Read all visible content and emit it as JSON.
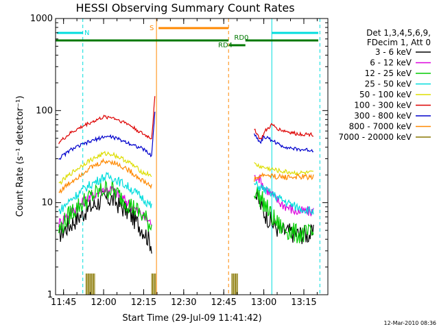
{
  "chart_data": {
    "type": "line",
    "title": "HESSI Observing Summary Count Rates",
    "xlabel": "Start Time (29-Jul-09 11:41:42)",
    "ylabel": "Count Rate (s⁻¹ detector⁻¹)",
    "yscale": "log",
    "ylim": [
      1,
      1000
    ],
    "yticks": [
      {
        "value": 1,
        "label": "1"
      },
      {
        "value": 10,
        "label": "10"
      },
      {
        "value": 100,
        "label": "100"
      },
      {
        "value": 1000,
        "label": "1000"
      }
    ],
    "xlim_minutes": [
      11.7,
      13.4
    ],
    "xticks": [
      {
        "value": 11.75,
        "label": "11:45"
      },
      {
        "value": 12.0,
        "label": "12:00"
      },
      {
        "value": 12.25,
        "label": "12:15"
      },
      {
        "value": 12.5,
        "label": "12:30"
      },
      {
        "value": 12.75,
        "label": "12:45"
      },
      {
        "value": 13.0,
        "label": "13:00"
      },
      {
        "value": 13.25,
        "label": "13:15"
      }
    ],
    "legend_placement": "right",
    "legend_header": [
      "Det 1,3,4,5,6,9,",
      "FDecim 1, Att 0"
    ],
    "series": [
      {
        "name": "3 - 6 keV",
        "color": "#000000",
        "day1": [
          [
            11.72,
            4.5
          ],
          [
            11.8,
            6
          ],
          [
            11.9,
            8.5
          ],
          [
            12.0,
            11
          ],
          [
            12.05,
            11
          ],
          [
            12.15,
            8
          ],
          [
            12.25,
            5
          ],
          [
            12.3,
            3.5
          ]
        ],
        "day2": [
          [
            12.95,
            12
          ],
          [
            13.0,
            8
          ],
          [
            13.05,
            6
          ],
          [
            13.1,
            5
          ],
          [
            13.2,
            4.6
          ],
          [
            13.31,
            4.5
          ]
        ]
      },
      {
        "name": "6 - 12 keV",
        "color": "#dd00dd",
        "day1": [
          [
            11.72,
            6
          ],
          [
            11.8,
            8
          ],
          [
            11.9,
            11
          ],
          [
            12.0,
            14
          ],
          [
            12.05,
            14
          ],
          [
            12.15,
            10
          ],
          [
            12.25,
            7
          ],
          [
            12.3,
            6
          ]
        ],
        "day2": [
          [
            12.94,
            18
          ],
          [
            12.96,
            20
          ],
          [
            13.0,
            15
          ],
          [
            13.1,
            10
          ],
          [
            13.2,
            8
          ],
          [
            13.31,
            8
          ]
        ]
      },
      {
        "name": "12 - 25 keV",
        "color": "#00cc00",
        "day1": [
          [
            11.72,
            5
          ],
          [
            11.8,
            8
          ],
          [
            11.9,
            11
          ],
          [
            12.0,
            14
          ],
          [
            12.05,
            14
          ],
          [
            12.15,
            10
          ],
          [
            12.25,
            7
          ],
          [
            12.3,
            5.5
          ]
        ],
        "day2": [
          [
            12.94,
            14
          ],
          [
            13.0,
            10
          ],
          [
            13.05,
            7
          ],
          [
            13.1,
            5.5
          ],
          [
            13.2,
            4.6
          ],
          [
            13.31,
            4.5
          ]
        ]
      },
      {
        "name": "25 - 50 keV",
        "color": "#00dddd",
        "day1": [
          [
            11.72,
            8
          ],
          [
            11.8,
            11
          ],
          [
            11.9,
            15
          ],
          [
            12.0,
            19
          ],
          [
            12.05,
            19
          ],
          [
            12.15,
            15
          ],
          [
            12.25,
            11
          ],
          [
            12.3,
            9
          ]
        ],
        "day2": [
          [
            12.94,
            16
          ],
          [
            13.0,
            14
          ],
          [
            13.1,
            11
          ],
          [
            13.2,
            9
          ],
          [
            13.31,
            8
          ]
        ]
      },
      {
        "name": "50 - 100 keV",
        "color": "#dddd00",
        "day1": [
          [
            11.72,
            16
          ],
          [
            11.8,
            21
          ],
          [
            11.9,
            28
          ],
          [
            12.0,
            34
          ],
          [
            12.05,
            34
          ],
          [
            12.15,
            28
          ],
          [
            12.25,
            21
          ],
          [
            12.3,
            20
          ]
        ],
        "day2": [
          [
            12.94,
            26
          ],
          [
            13.0,
            24
          ],
          [
            13.1,
            22
          ],
          [
            13.2,
            21
          ],
          [
            13.31,
            21
          ]
        ]
      },
      {
        "name": "100 - 300 keV",
        "color": "#dd0000",
        "day1": [
          [
            11.72,
            45
          ],
          [
            11.8,
            58
          ],
          [
            11.9,
            72
          ],
          [
            12.0,
            85
          ],
          [
            12.05,
            85
          ],
          [
            12.15,
            72
          ],
          [
            12.25,
            55
          ],
          [
            12.3,
            50
          ],
          [
            12.32,
            140
          ]
        ],
        "day2": [
          [
            12.94,
            65
          ],
          [
            12.96,
            55
          ],
          [
            12.98,
            48
          ],
          [
            13.01,
            60
          ],
          [
            13.05,
            70
          ],
          [
            13.1,
            62
          ],
          [
            13.2,
            56
          ],
          [
            13.31,
            55
          ]
        ]
      },
      {
        "name": "300 - 800 keV",
        "color": "#0000cc",
        "day1": [
          [
            11.72,
            30
          ],
          [
            11.8,
            38
          ],
          [
            11.9,
            45
          ],
          [
            12.0,
            52
          ],
          [
            12.05,
            52
          ],
          [
            12.15,
            45
          ],
          [
            12.25,
            38
          ],
          [
            12.3,
            32
          ],
          [
            12.32,
            100
          ]
        ],
        "day2": [
          [
            12.94,
            55
          ],
          [
            12.98,
            45
          ],
          [
            13.0,
            52
          ],
          [
            13.05,
            48
          ],
          [
            13.1,
            42
          ],
          [
            13.2,
            38
          ],
          [
            13.31,
            37
          ]
        ]
      },
      {
        "name": "800 - 7000 keV",
        "color": "#ff8800",
        "day1": [
          [
            11.72,
            13
          ],
          [
            11.8,
            17
          ],
          [
            11.9,
            23
          ],
          [
            12.0,
            28
          ],
          [
            12.05,
            28
          ],
          [
            12.15,
            23
          ],
          [
            12.25,
            17
          ],
          [
            12.3,
            15
          ]
        ],
        "day2": [
          [
            12.94,
            18
          ],
          [
            13.0,
            20
          ],
          [
            13.1,
            19
          ],
          [
            13.2,
            19
          ],
          [
            13.31,
            19
          ]
        ]
      },
      {
        "name": "7000 - 20000 keV",
        "color": "#887700",
        "day1": [],
        "day2": []
      }
    ],
    "annotations": [
      {
        "text": "N",
        "color": "#00dddd"
      },
      {
        "text": "S",
        "color": "#ff8800"
      },
      {
        "text": "RD0",
        "color": "#007700"
      },
      {
        "text": "RD4",
        "color": "#007700"
      }
    ],
    "footer_timestamp": "12-Mar-2010 08:36"
  }
}
